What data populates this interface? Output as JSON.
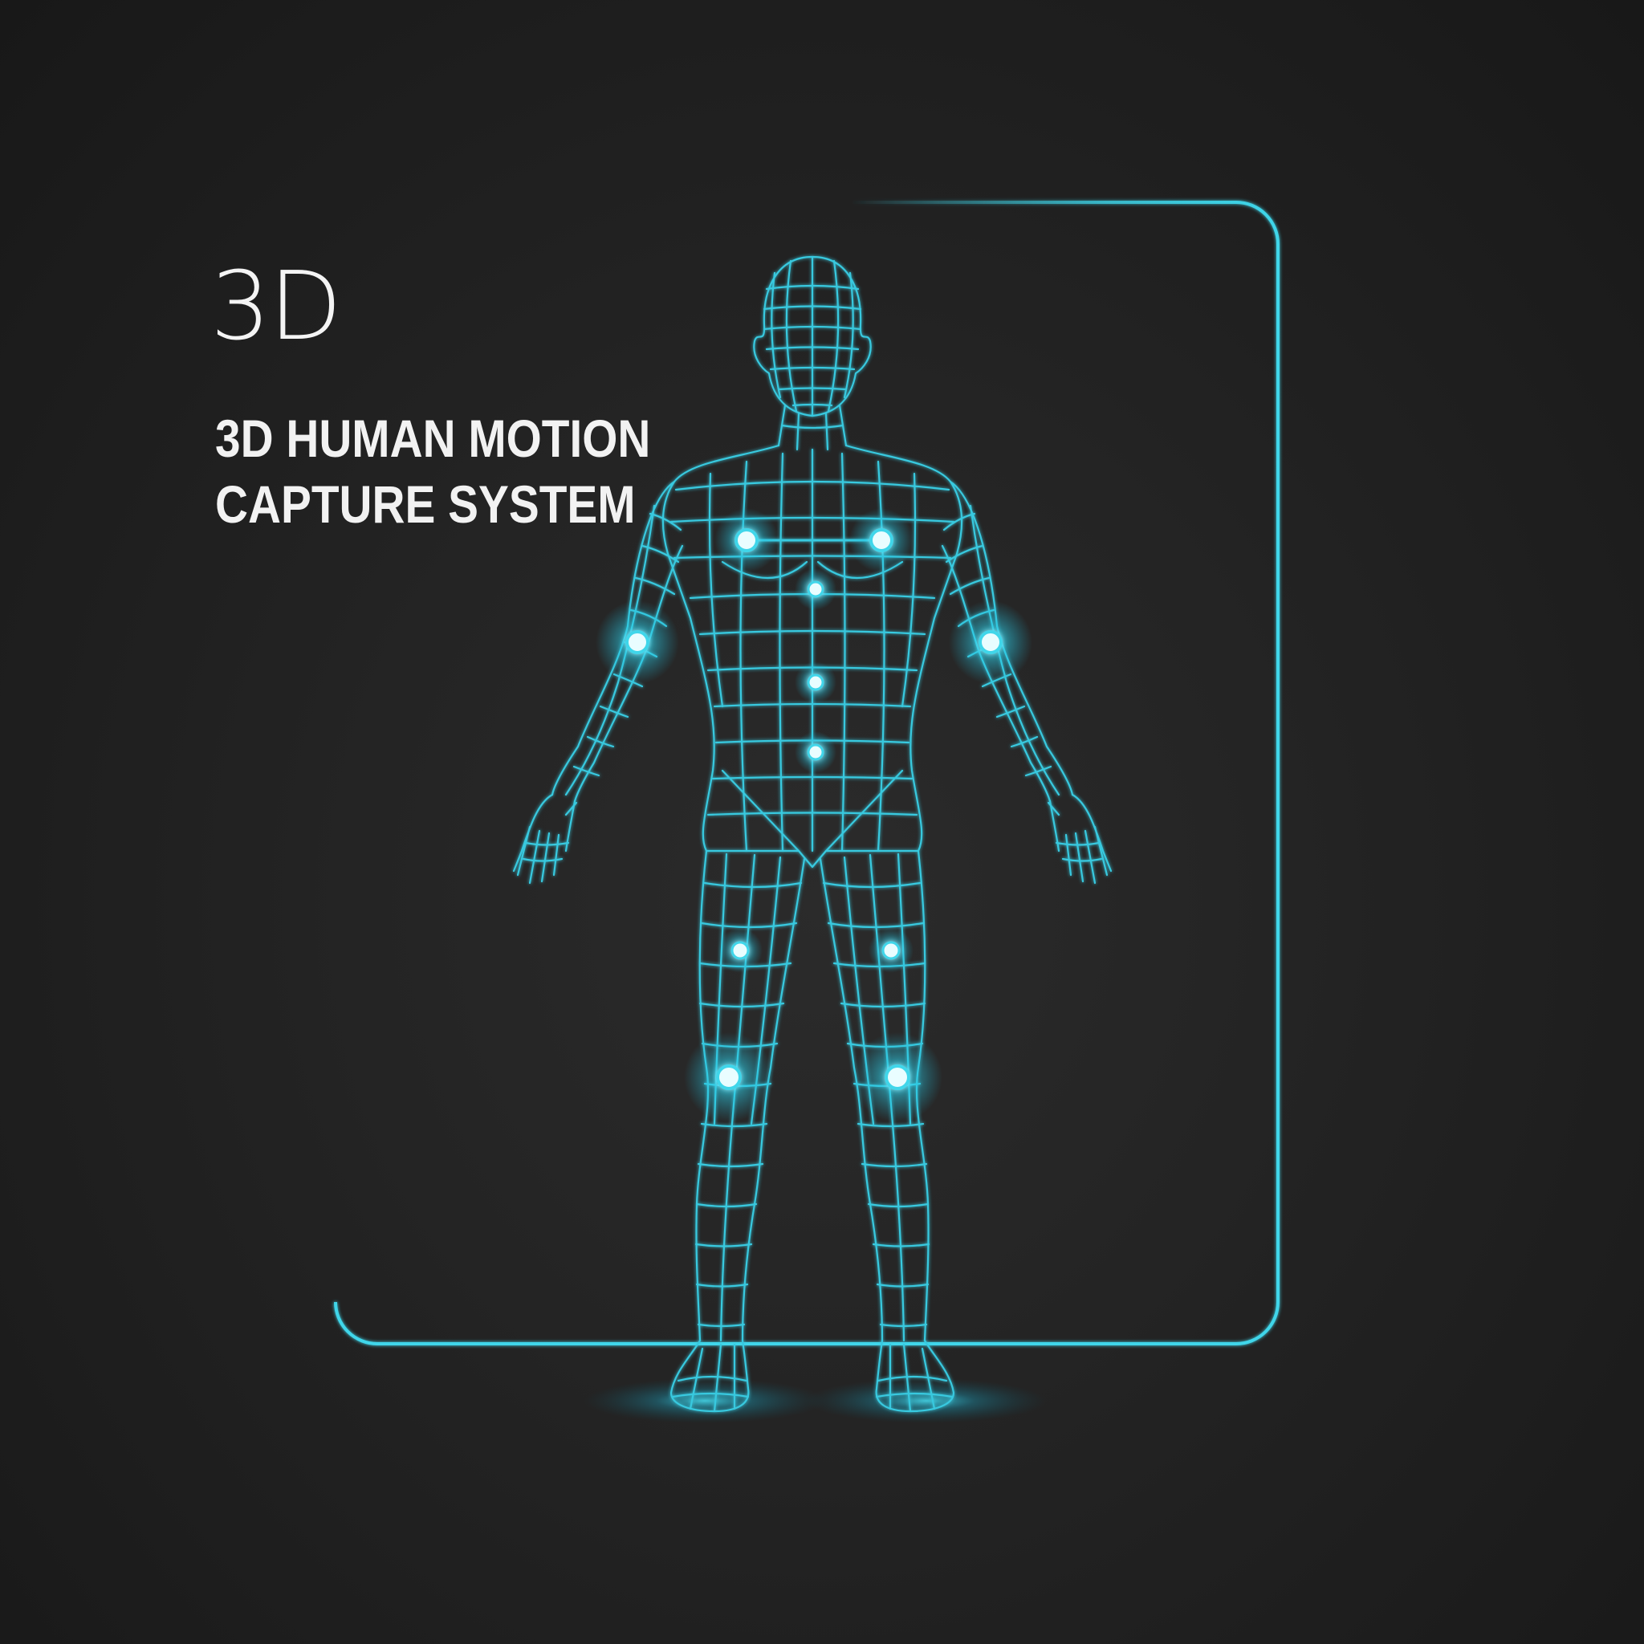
{
  "headline": {
    "big": "3D",
    "line1": "3D HUMAN MOTION",
    "line2": "CAPTURE SYSTEM"
  },
  "colors": {
    "background": "#1f1f1f",
    "accent": "#3fd6ea",
    "marker_core": "#e9fdff",
    "text": "#f2f2f2"
  },
  "figure": {
    "description_icon": "wireframe-human-body-icon",
    "markers": [
      "left-shoulder-marker",
      "right-shoulder-marker",
      "sternum-marker",
      "abdomen-marker",
      "navel-marker",
      "left-elbow-marker",
      "right-elbow-marker",
      "left-thigh-marker",
      "right-thigh-marker",
      "left-knee-marker",
      "right-knee-marker"
    ]
  }
}
